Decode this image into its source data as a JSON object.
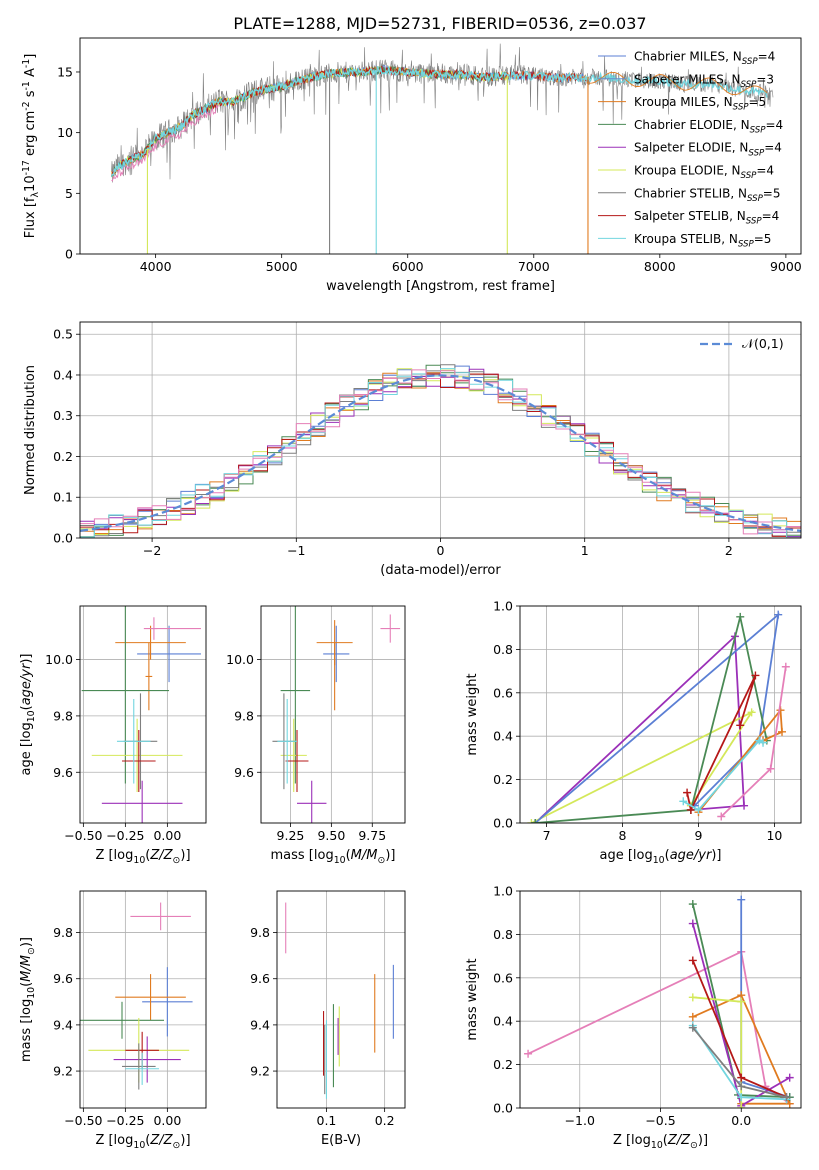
{
  "figure": {
    "title": "PLATE=1288, MJD=52731, FIBERID=0536, z=0.037"
  },
  "colors": {
    "Chabrier MILES": "#5b7fd4",
    "Salpeter MILES": "#6a8ac9",
    "Kroupa MILES": "#e07b20",
    "Chabrier ELODIE": "#4a8a55",
    "Salpeter ELODIE": "#9b30b8",
    "Kroupa ELODIE": "#d4e85a",
    "Chabrier STELIB": "#7f7f7f",
    "Salpeter STELIB": "#b51818",
    "Kroupa STELIB": "#72d6df",
    "pink": "#e57fb8",
    "gaussian": "#5b8bd6"
  },
  "chart_data": [
    {
      "type": "line",
      "panel": "spectrum",
      "xlabel": "wavelength [Angstrom, rest frame]",
      "ylabel": "Flux [f$_\\lambda$10$^{-17}$ erg cm$^{-2}$ s$^{-1}$ A$^{-1}$]",
      "xlim": [
        3400,
        9120
      ],
      "ylim": [
        0,
        17.8
      ],
      "x_ticks": [
        4000,
        5000,
        6000,
        7000,
        8000,
        9000
      ],
      "y_ticks": [
        0,
        5,
        10,
        15
      ],
      "grid": false,
      "legend_position": "top-right",
      "legend": [
        {
          "label": "Chabrier MILES, N$_{SSP}$=4",
          "color_key": "Chabrier MILES"
        },
        {
          "label": "Salpeter MILES, N$_{SSP}$=3",
          "color_key": "Salpeter MILES"
        },
        {
          "label": "Kroupa MILES, N$_{SSP}$=5",
          "color_key": "Kroupa MILES"
        },
        {
          "label": "Chabrier ELODIE, N$_{SSP}$=4",
          "color_key": "Chabrier ELODIE"
        },
        {
          "label": "Salpeter ELODIE, N$_{SSP}$=4",
          "color_key": "Salpeter ELODIE"
        },
        {
          "label": "Kroupa ELODIE, N$_{SSP}$=4",
          "color_key": "Kroupa ELODIE"
        },
        {
          "label": "Chabrier STELIB, N$_{SSP}$=5",
          "color_key": "Chabrier STELIB"
        },
        {
          "label": "Salpeter STELIB, N$_{SSP}$=4",
          "color_key": "Salpeter STELIB"
        },
        {
          "label": "Kroupa STELIB, N$_{SSP}$=5",
          "color_key": "Kroupa STELIB"
        }
      ],
      "continuum": {
        "x": [
          3650,
          3700,
          3800,
          3900,
          4000,
          4100,
          4200,
          4300,
          4400,
          4500,
          4600,
          4800,
          5000,
          5200,
          5400,
          5600,
          5800,
          6000,
          6200,
          6400,
          6600,
          6800,
          7000,
          7200,
          7400,
          7600,
          7800,
          8000,
          8200,
          8400,
          8600,
          8850
        ],
        "y": [
          6.5,
          7.2,
          7.8,
          8.2,
          9.5,
          10.0,
          10.5,
          11.5,
          12.0,
          12.6,
          12.5,
          13.4,
          13.8,
          14.5,
          14.9,
          15.0,
          15.2,
          15.0,
          14.8,
          14.8,
          14.6,
          14.7,
          14.7,
          14.5,
          14.6,
          14.5,
          14.3,
          14.3,
          14.0,
          14.0,
          13.6,
          13.2
        ]
      },
      "dips": [
        {
          "x": 3935,
          "y": 0.0
        },
        {
          "x": 5380,
          "y": 0.0
        },
        {
          "x": 5750,
          "y": 0.0
        },
        {
          "x": 6790,
          "y": 0.0
        },
        {
          "x": 7430,
          "y": 0.0
        }
      ]
    },
    {
      "type": "line",
      "panel": "residual-histogram",
      "xlabel": "(data-model)/error",
      "ylabel": "Normed distribution",
      "xlim": [
        -2.5,
        2.5
      ],
      "ylim": [
        0,
        0.53
      ],
      "x_ticks": [
        -2,
        -1,
        0,
        1,
        2
      ],
      "y_ticks": [
        0.0,
        0.1,
        0.2,
        0.3,
        0.4,
        0.5
      ],
      "grid": true,
      "legend_position": "top-right",
      "legend": [
        {
          "label": "$\\mathcal{N}(0,1)$",
          "color_key": "gaussian"
        }
      ],
      "bin_width": 0.1,
      "bin_start": -2.5
    },
    {
      "type": "scatter",
      "panel": "age-vs-Z",
      "xlabel": "Z [log$_{10}$($Z/Z_\\odot$)]",
      "ylabel": "age  [log$_{10}$($age/yr$)]",
      "xlim": [
        -0.52,
        0.23
      ],
      "ylim": [
        9.42,
        10.19
      ],
      "x_ticks": [
        -0.5,
        -0.25,
        0.0
      ],
      "y_ticks": [
        9.6,
        9.8,
        10.0
      ],
      "grid": true,
      "points": [
        {
          "x": 0.01,
          "y": 10.02,
          "xerr": 0.19,
          "yerr": 0.1,
          "color_key": "Chabrier MILES"
        },
        {
          "x": -0.1,
          "y": 10.06,
          "xerr": 0.21,
          "yerr": 0.06,
          "color_key": "Kroupa MILES"
        },
        {
          "x": -0.11,
          "y": 9.94,
          "xerr": 0.02,
          "yerr": 0.12,
          "color_key": "Kroupa MILES"
        },
        {
          "x": -0.25,
          "y": 9.89,
          "xerr": 0.26,
          "yerr": 0.33,
          "color_key": "Chabrier ELODIE"
        },
        {
          "x": -0.18,
          "y": 9.66,
          "xerr": 0.27,
          "yerr": 0.13,
          "color_key": "Kroupa ELODIE"
        },
        {
          "x": -0.15,
          "y": 9.49,
          "xerr": 0.24,
          "yerr": 0.08,
          "color_key": "Salpeter ELODIE"
        },
        {
          "x": -0.16,
          "y": 9.71,
          "xerr": 0.1,
          "yerr": 0.17,
          "color_key": "Chabrier STELIB"
        },
        {
          "x": -0.17,
          "y": 9.64,
          "xerr": 0.1,
          "yerr": 0.11,
          "color_key": "Salpeter STELIB"
        },
        {
          "x": -0.2,
          "y": 9.71,
          "xerr": 0.1,
          "yerr": 0.15,
          "color_key": "Kroupa STELIB"
        },
        {
          "x": -0.08,
          "y": 10.11,
          "xerr": 0.02,
          "yerr": 0.04,
          "color_key": "pink"
        },
        {
          "x": 0.03,
          "y": 10.11,
          "xerr": 0.17,
          "yerr": 0.0,
          "color_key": "pink"
        }
      ]
    },
    {
      "type": "scatter",
      "panel": "age-vs-mass",
      "xlabel": "mass [log$_{10}$($M/M_\\odot$)]",
      "ylabel": "",
      "xlim": [
        9.07,
        9.95
      ],
      "ylim": [
        9.42,
        10.19
      ],
      "x_ticks": [
        9.25,
        9.5,
        9.75
      ],
      "y_ticks": [
        9.6,
        9.8,
        10.0
      ],
      "grid": true,
      "points": [
        {
          "x": 9.53,
          "y": 10.02,
          "xerr": 0.08,
          "yerr": 0.1,
          "color_key": "Chabrier MILES"
        },
        {
          "x": 9.52,
          "y": 10.06,
          "xerr": 0.11,
          "yerr": 0.08,
          "color_key": "Kroupa MILES"
        },
        {
          "x": 9.52,
          "y": 9.94,
          "xerr": 0.0,
          "yerr": 0.12,
          "color_key": "Kroupa MILES"
        },
        {
          "x": 9.28,
          "y": 9.89,
          "xerr": 0.09,
          "yerr": 0.33,
          "color_key": "Chabrier ELODIE"
        },
        {
          "x": 9.27,
          "y": 9.66,
          "xerr": 0.08,
          "yerr": 0.13,
          "color_key": "Kroupa ELODIE"
        },
        {
          "x": 9.38,
          "y": 9.49,
          "xerr": 0.09,
          "yerr": 0.08,
          "color_key": "Salpeter ELODIE"
        },
        {
          "x": 9.21,
          "y": 9.71,
          "xerr": 0.07,
          "yerr": 0.17,
          "color_key": "Chabrier STELIB"
        },
        {
          "x": 9.29,
          "y": 9.64,
          "xerr": 0.07,
          "yerr": 0.11,
          "color_key": "Salpeter STELIB"
        },
        {
          "x": 9.23,
          "y": 9.71,
          "xerr": 0.06,
          "yerr": 0.15,
          "color_key": "Kroupa STELIB"
        },
        {
          "x": 9.86,
          "y": 10.11,
          "xerr": 0.0,
          "yerr": 0.05,
          "color_key": "pink"
        },
        {
          "x": 9.86,
          "y": 10.11,
          "xerr": 0.06,
          "yerr": 0.0,
          "color_key": "pink"
        }
      ]
    },
    {
      "type": "line",
      "panel": "mass-weight-vs-age",
      "xlabel": "age  [log$_{10}$($age/yr$)]",
      "ylabel": "mass weight",
      "xlim": [
        6.65,
        10.35
      ],
      "ylim": [
        0,
        1.0
      ],
      "x_ticks": [
        7,
        8,
        9,
        10
      ],
      "y_ticks": [
        0.0,
        0.2,
        0.4,
        0.6,
        0.8,
        1.0
      ],
      "grid": true,
      "series": [
        {
          "color_key": "Salpeter ELODIE",
          "x": [
            6.85,
            9.48,
            9.6,
            8.9
          ],
          "y": [
            0.0,
            0.86,
            0.08,
            0.06
          ]
        },
        {
          "color_key": "Kroupa ELODIE",
          "x": [
            6.8,
            9.7,
            8.9,
            8.9
          ],
          "y": [
            0.0,
            0.51,
            0.08,
            0.06
          ]
        },
        {
          "color_key": "Chabrier MILES",
          "x": [
            6.85,
            10.05,
            9.8,
            8.95
          ],
          "y": [
            0.0,
            0.96,
            0.38,
            0.08
          ]
        },
        {
          "color_key": "Chabrier ELODIE",
          "x": [
            6.85,
            8.9,
            9.55,
            9.9
          ],
          "y": [
            0.0,
            0.06,
            0.95,
            0.38
          ]
        },
        {
          "color_key": "Kroupa MILES",
          "x": [
            9.0,
            10.08,
            10.1,
            9.85
          ],
          "y": [
            0.05,
            0.52,
            0.42,
            0.38
          ]
        },
        {
          "color_key": "Salpeter STELIB",
          "x": [
            8.85,
            8.9,
            9.75,
            9.55
          ],
          "y": [
            0.14,
            0.06,
            0.68,
            0.45
          ]
        },
        {
          "color_key": "Kroupa STELIB",
          "x": [
            8.8,
            9.0,
            9.8,
            9.85
          ],
          "y": [
            0.1,
            0.06,
            0.38,
            0.37
          ]
        },
        {
          "color_key": "pink",
          "x": [
            9.3,
            9.95,
            10.15
          ],
          "y": [
            0.03,
            0.25,
            0.72
          ]
        }
      ]
    },
    {
      "type": "scatter",
      "panel": "mass-vs-Z",
      "xlabel": "Z [log$_{10}$($Z/Z_\\odot$)]",
      "ylabel": "mass [log$_{10}$($M/M_\\odot$)]",
      "xlim": [
        -0.52,
        0.23
      ],
      "ylim": [
        9.04,
        9.98
      ],
      "x_ticks": [
        -0.5,
        -0.25,
        0.0
      ],
      "y_ticks": [
        9.2,
        9.4,
        9.6,
        9.8
      ],
      "grid": true,
      "points": [
        {
          "x": -0.04,
          "y": 9.87,
          "xerr": 0.18,
          "yerr": 0.06,
          "color_key": "pink"
        },
        {
          "x": 0.0,
          "y": 9.5,
          "xerr": 0.15,
          "yerr": 0.15,
          "color_key": "Chabrier MILES"
        },
        {
          "x": -0.1,
          "y": 9.52,
          "xerr": 0.21,
          "yerr": 0.1,
          "color_key": "Kroupa MILES"
        },
        {
          "x": -0.27,
          "y": 9.42,
          "xerr": 0.25,
          "yerr": 0.08,
          "color_key": "Chabrier ELODIE"
        },
        {
          "x": -0.17,
          "y": 9.29,
          "xerr": 0.3,
          "yerr": 0.14,
          "color_key": "Kroupa ELODIE"
        },
        {
          "x": -0.12,
          "y": 9.25,
          "xerr": 0.2,
          "yerr": 0.1,
          "color_key": "Salpeter ELODIE"
        },
        {
          "x": -0.15,
          "y": 9.29,
          "xerr": 0.1,
          "yerr": 0.08,
          "color_key": "Salpeter STELIB"
        },
        {
          "x": -0.17,
          "y": 9.22,
          "xerr": 0.1,
          "yerr": 0.1,
          "color_key": "Chabrier STELIB"
        },
        {
          "x": -0.15,
          "y": 9.21,
          "xerr": 0.1,
          "yerr": 0.07,
          "color_key": "Kroupa STELIB"
        }
      ]
    },
    {
      "type": "scatter",
      "panel": "mass-vs-EBV",
      "xlabel": "E(B-V)",
      "ylabel": "",
      "xlim": [
        0.015,
        0.235
      ],
      "ylim": [
        9.04,
        9.98
      ],
      "x_ticks": [
        0.1,
        0.2
      ],
      "y_ticks": [
        9.2,
        9.4,
        9.6,
        9.8
      ],
      "grid": true,
      "points": [
        {
          "x": 0.03,
          "y": 9.82,
          "xerr": 0.0,
          "yerr": 0.11,
          "color_key": "pink"
        },
        {
          "x": 0.215,
          "y": 9.5,
          "xerr": 0.0,
          "yerr": 0.16,
          "color_key": "Chabrier MILES"
        },
        {
          "x": 0.183,
          "y": 9.45,
          "xerr": 0.0,
          "yerr": 0.17,
          "color_key": "Kroupa MILES"
        },
        {
          "x": 0.122,
          "y": 9.35,
          "xerr": 0.0,
          "yerr": 0.13,
          "color_key": "Kroupa ELODIE"
        },
        {
          "x": 0.112,
          "y": 9.31,
          "xerr": 0.0,
          "yerr": 0.18,
          "color_key": "Chabrier ELODIE"
        },
        {
          "x": 0.12,
          "y": 9.35,
          "xerr": 0.0,
          "yerr": 0.08,
          "color_key": "Salpeter ELODIE"
        },
        {
          "x": 0.095,
          "y": 9.32,
          "xerr": 0.0,
          "yerr": 0.14,
          "color_key": "Salpeter STELIB"
        },
        {
          "x": 0.1,
          "y": 9.25,
          "xerr": 0.0,
          "yerr": 0.17,
          "color_key": "Kroupa STELIB"
        },
        {
          "x": 0.097,
          "y": 9.25,
          "xerr": 0.0,
          "yerr": 0.15,
          "color_key": "Chabrier STELIB"
        }
      ]
    },
    {
      "type": "line",
      "panel": "mass-weight-vs-Z",
      "xlabel": "Z [log$_{10}$($Z/Z_\\odot$)]",
      "ylabel": "mass weight",
      "xlim": [
        -1.37,
        0.37
      ],
      "ylim": [
        0,
        1.0
      ],
      "x_ticks": [
        -1.0,
        -0.5,
        0.0
      ],
      "y_ticks": [
        0.0,
        0.2,
        0.4,
        0.6,
        0.8,
        1.0
      ],
      "grid": true,
      "series": [
        {
          "color_key": "pink",
          "x": [
            -1.32,
            -0.0,
            0.15,
            0.3
          ],
          "y": [
            0.25,
            0.72,
            0.1,
            0.02
          ]
        },
        {
          "color_key": "Chabrier MILES",
          "x": [
            0.0,
            0.0,
            0.3
          ],
          "y": [
            0.96,
            0.12,
            0.05
          ]
        },
        {
          "color_key": "Kroupa MILES",
          "x": [
            -0.3,
            0.0,
            0.3,
            0.0
          ],
          "y": [
            0.42,
            0.52,
            0.02,
            0.02
          ]
        },
        {
          "color_key": "Chabrier ELODIE",
          "x": [
            -0.3,
            -0.02,
            0.3
          ],
          "y": [
            0.94,
            0.06,
            0.05
          ]
        },
        {
          "color_key": "Salpeter ELODIE",
          "x": [
            -0.3,
            0.0,
            0.3
          ],
          "y": [
            0.85,
            0.01,
            0.14
          ]
        },
        {
          "color_key": "Kroupa ELODIE",
          "x": [
            -0.3,
            0.0,
            0.0
          ],
          "y": [
            0.51,
            0.49,
            0.0
          ]
        },
        {
          "color_key": "Salpeter STELIB",
          "x": [
            -0.3,
            0.0,
            0.28
          ],
          "y": [
            0.68,
            0.14,
            0.05
          ]
        },
        {
          "color_key": "Kroupa STELIB",
          "x": [
            -0.3,
            0.0,
            0.28
          ],
          "y": [
            0.38,
            0.05,
            0.04
          ]
        },
        {
          "color_key": "Chabrier STELIB",
          "x": [
            -0.3,
            0.0,
            0.28
          ],
          "y": [
            0.37,
            0.1,
            0.05
          ]
        }
      ]
    }
  ]
}
